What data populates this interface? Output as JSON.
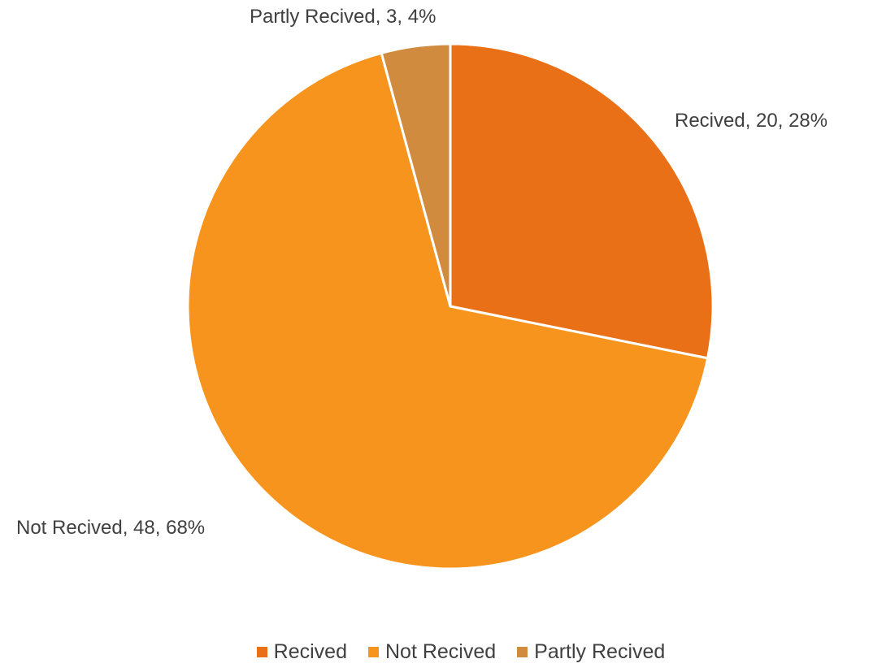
{
  "chart_data": {
    "type": "pie",
    "title": "",
    "start_angle_deg": 0,
    "direction": "clockwise",
    "slices": [
      {
        "name": "Recived",
        "value": 20,
        "percent": "28%",
        "label": "Recived, 20, 28%",
        "color": "#EA7017"
      },
      {
        "name": "Not Recived",
        "value": 48,
        "percent": "68%",
        "label": "Not Recived, 48, 68%",
        "color": "#F7941D"
      },
      {
        "name": "Partly Recived",
        "value": 3,
        "percent": "4%",
        "label": "Partly Recived, 3, 4%",
        "color": "#D08B3E"
      }
    ],
    "legend": {
      "position": "bottom",
      "items": [
        "Recived",
        "Not Recived",
        "Partly Recived"
      ]
    }
  }
}
